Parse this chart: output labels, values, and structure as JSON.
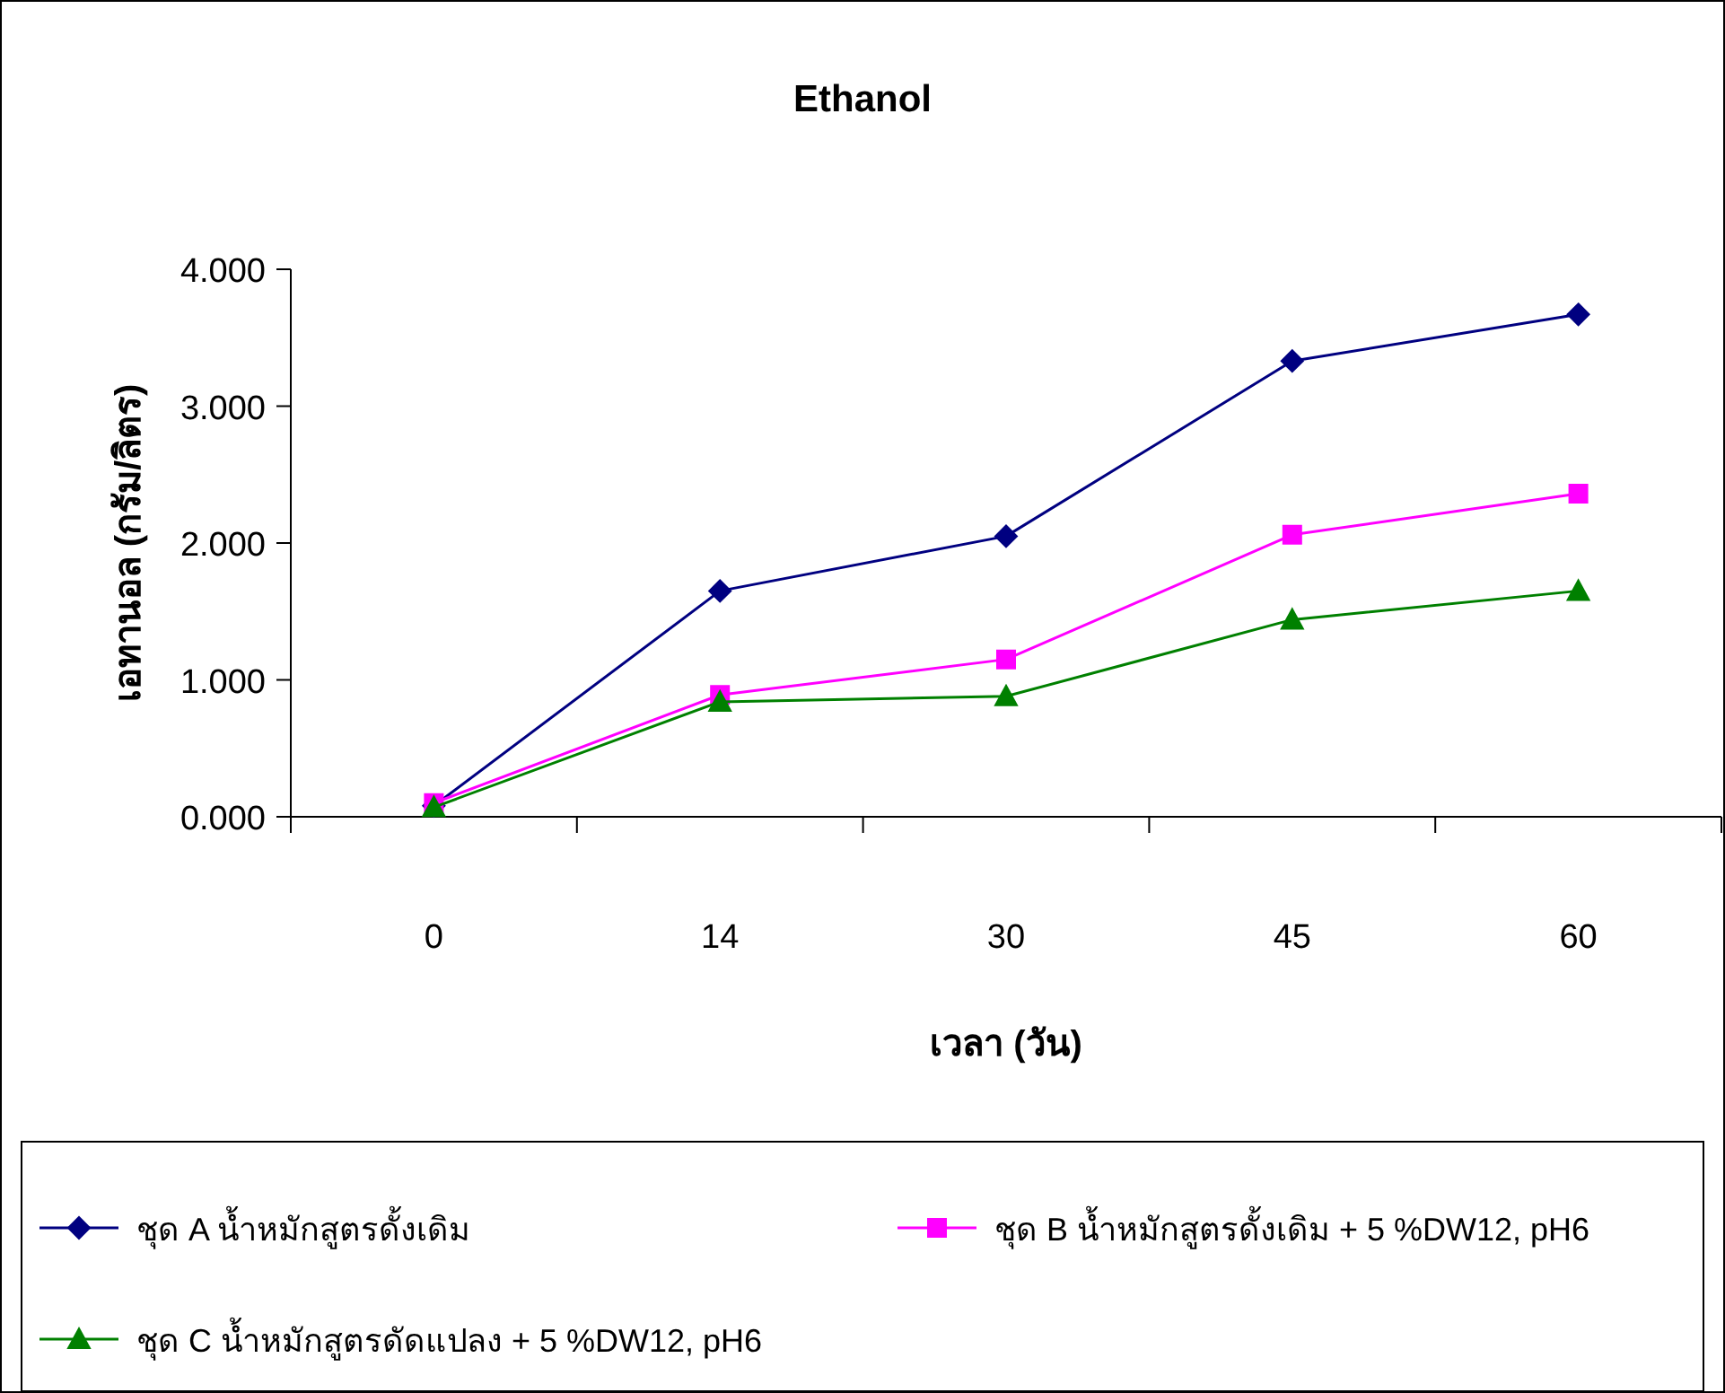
{
  "chart_data": {
    "type": "line",
    "title": "Ethanol",
    "xlabel": "เวลา (วัน)",
    "ylabel": "เอทานอล (กรัม/ลิตร)",
    "categories": [
      "0",
      "14",
      "30",
      "45",
      "60"
    ],
    "ylim": [
      0,
      4
    ],
    "yticks": [
      {
        "value": 0,
        "label": "0.000"
      },
      {
        "value": 1,
        "label": "1.000"
      },
      {
        "value": 2,
        "label": "2.000"
      },
      {
        "value": 3,
        "label": "3.000"
      },
      {
        "value": 4,
        "label": "4.000"
      }
    ],
    "series": [
      {
        "name": "ชุด A น้ำหมักสูตรดั้งเดิม",
        "color": "#000080",
        "marker": "diamond",
        "values": [
          0.08,
          1.65,
          2.05,
          3.33,
          3.67
        ]
      },
      {
        "name": "ชุด B น้ำหมักสูตรดั้งเดิม + 5 %DW12, pH6",
        "color": "#ff00ff",
        "marker": "square",
        "values": [
          0.1,
          0.89,
          1.15,
          2.06,
          2.36
        ]
      },
      {
        "name": "ชุด C น้ำหมักสูตรดัดแปลง + 5 %DW12, pH6",
        "color": "#008000",
        "marker": "triangle",
        "values": [
          0.07,
          0.84,
          0.88,
          1.44,
          1.65
        ]
      }
    ],
    "grid": false,
    "legend": "bottom",
    "line_style": "solid"
  }
}
